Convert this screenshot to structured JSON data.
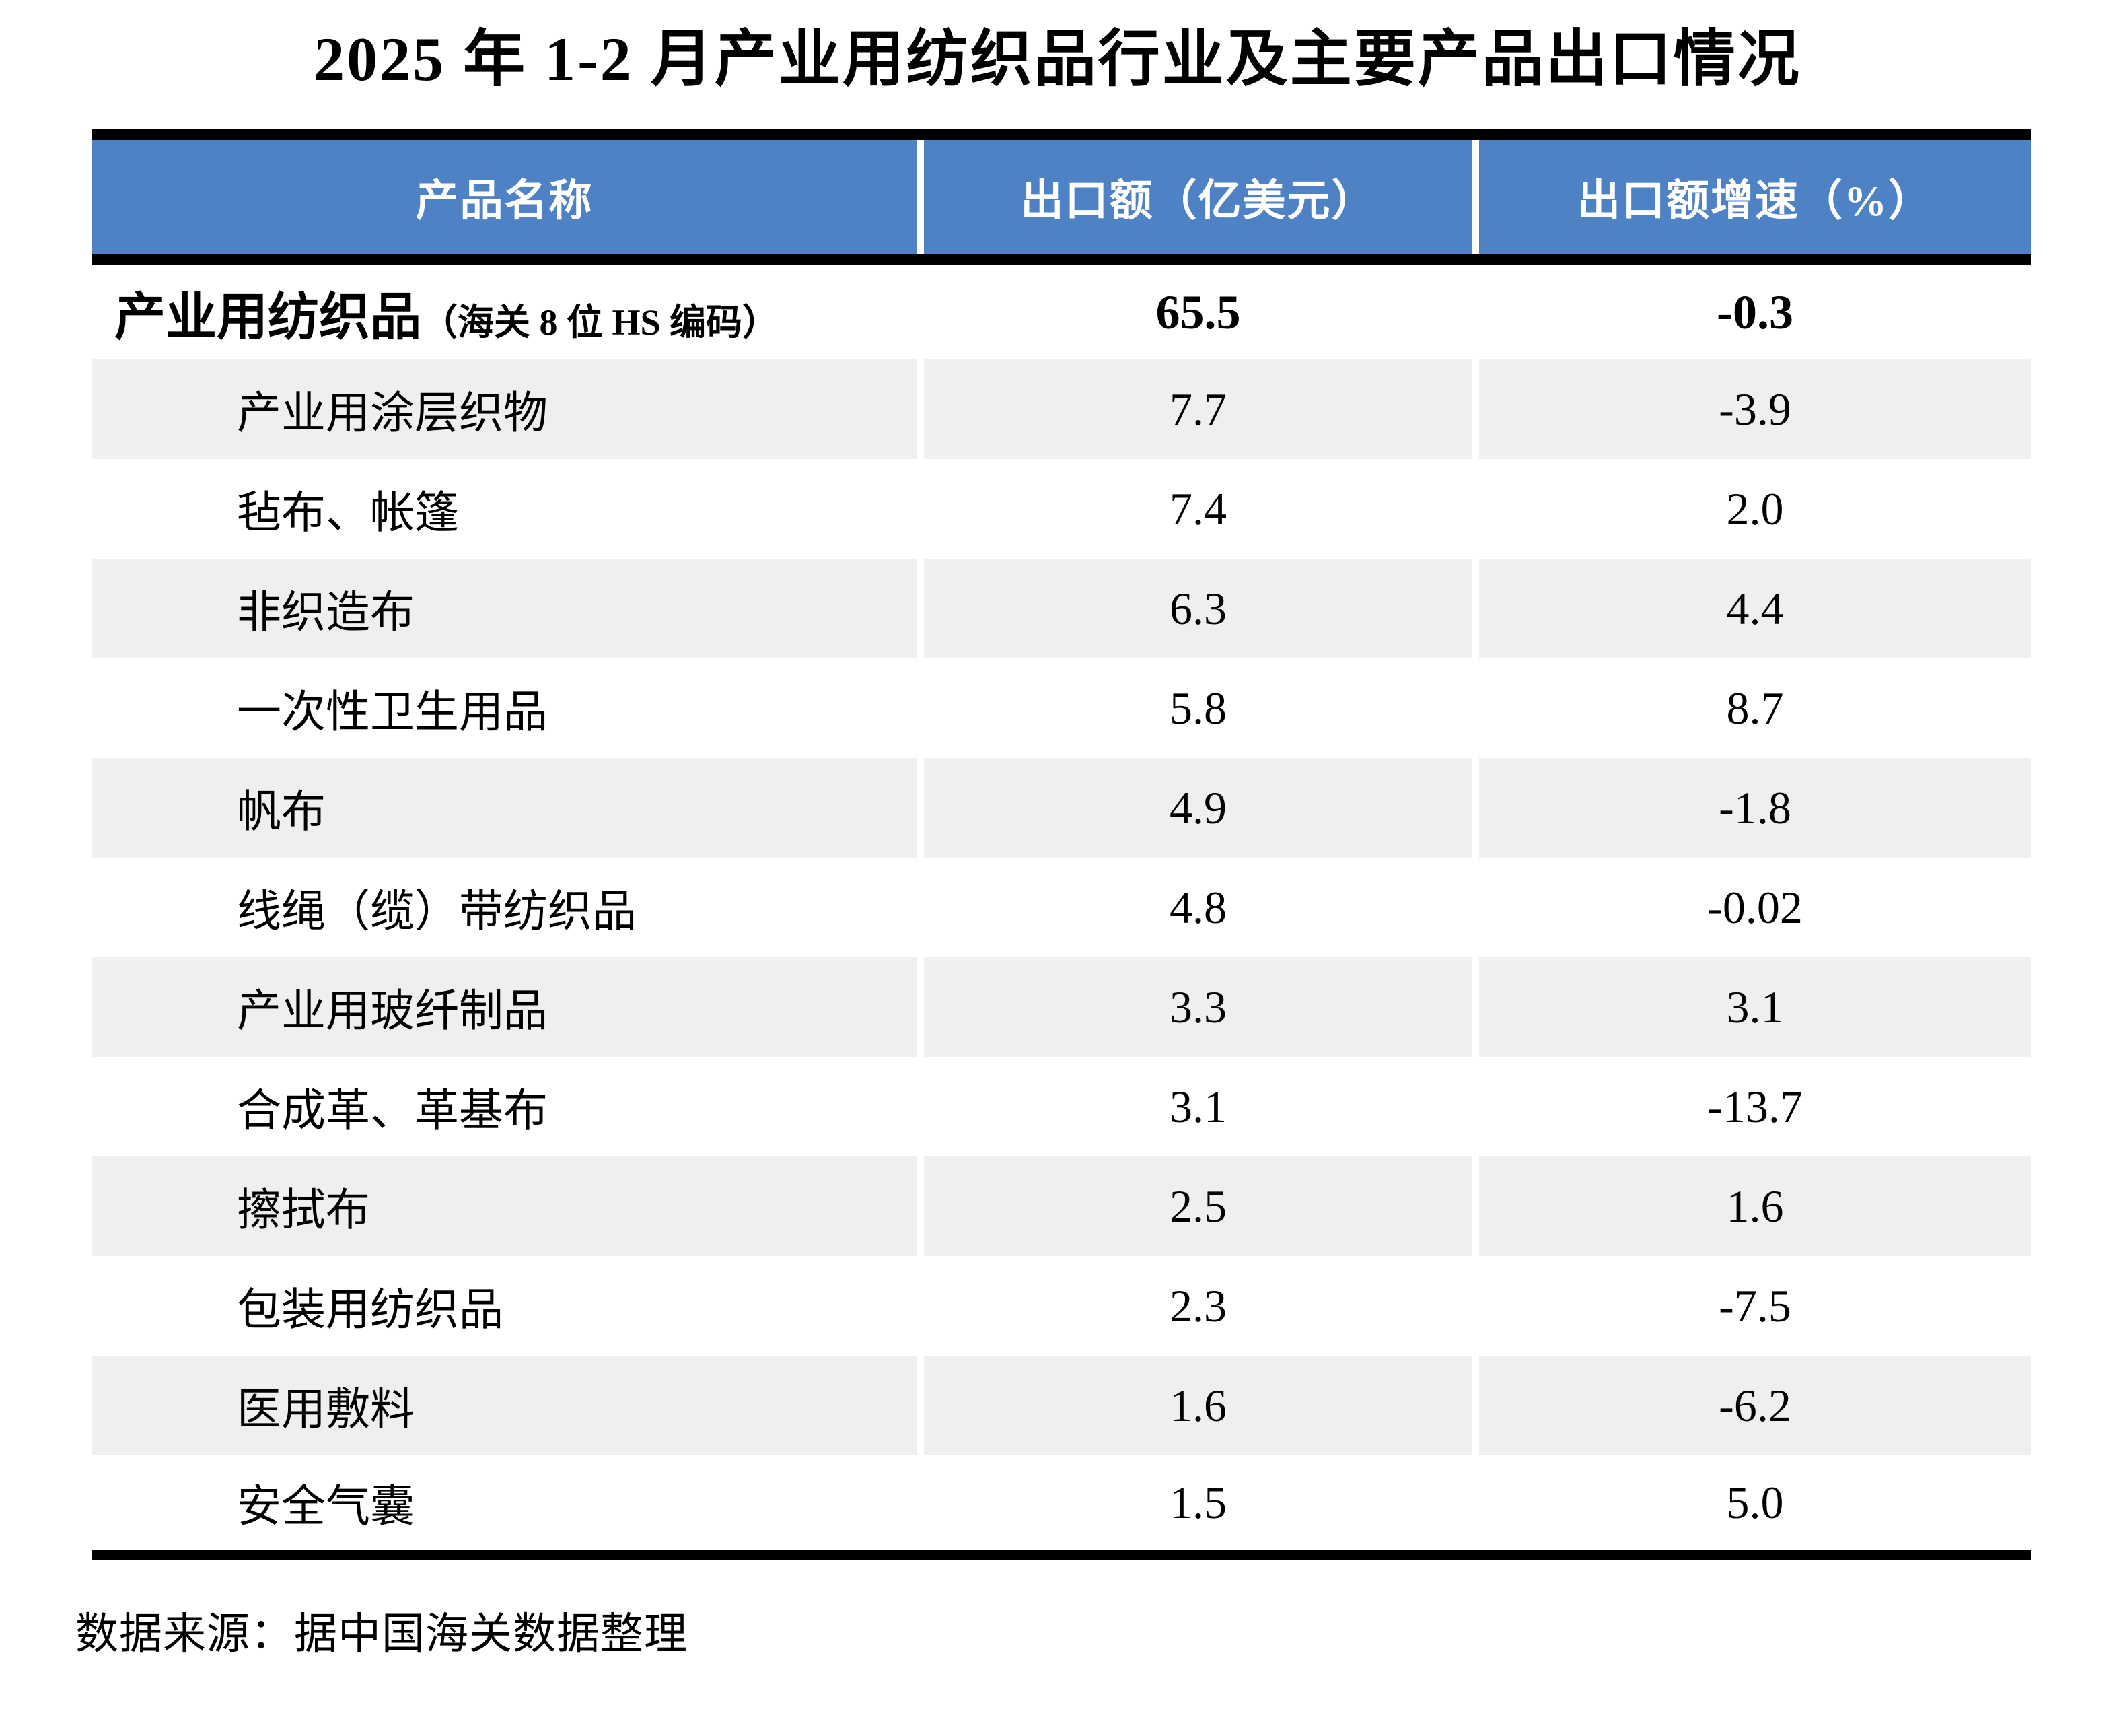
{
  "title": "2025 年 1-2 月产业用纺织品行业及主要产品出口情况",
  "table": {
    "columns": [
      "产品名称",
      "出口额（亿美元）",
      "出口额增速（%）"
    ],
    "rows": [
      {
        "name": "产业用纺织品",
        "note": "（海关 8 位 HS 编码）",
        "export": "65.5",
        "growth": "-0.3"
      },
      {
        "name": "产业用涂层织物",
        "note": "",
        "export": "7.7",
        "growth": "-3.9"
      },
      {
        "name": "毡布、帐篷",
        "note": "",
        "export": "7.4",
        "growth": "2.0"
      },
      {
        "name": "非织造布",
        "note": "",
        "export": "6.3",
        "growth": "4.4"
      },
      {
        "name": "一次性卫生用品",
        "note": "",
        "export": "5.8",
        "growth": "8.7"
      },
      {
        "name": "帆布",
        "note": "",
        "export": "4.9",
        "growth": "-1.8"
      },
      {
        "name": "线绳（缆）带纺织品",
        "note": "",
        "export": "4.8",
        "growth": "-0.02"
      },
      {
        "name": "产业用玻纤制品",
        "note": "",
        "export": "3.3",
        "growth": "3.1"
      },
      {
        "name": "合成革、革基布",
        "note": "",
        "export": "3.1",
        "growth": "-13.7"
      },
      {
        "name": "擦拭布",
        "note": "",
        "export": "2.5",
        "growth": "1.6"
      },
      {
        "name": "包装用纺织品",
        "note": "",
        "export": "2.3",
        "growth": "-7.5"
      },
      {
        "name": "医用敷料",
        "note": "",
        "export": "1.6",
        "growth": "-6.2"
      },
      {
        "name": "安全气囊",
        "note": "",
        "export": "1.5",
        "growth": "5.0"
      }
    ]
  },
  "footer": {
    "source": "数据来源：据中国海关数据整理"
  },
  "colors": {
    "header_bg": "#4E82C4",
    "row_alt_bg": "#EFEFEF",
    "border": "#000000",
    "header_text": "#FFFFFF"
  }
}
